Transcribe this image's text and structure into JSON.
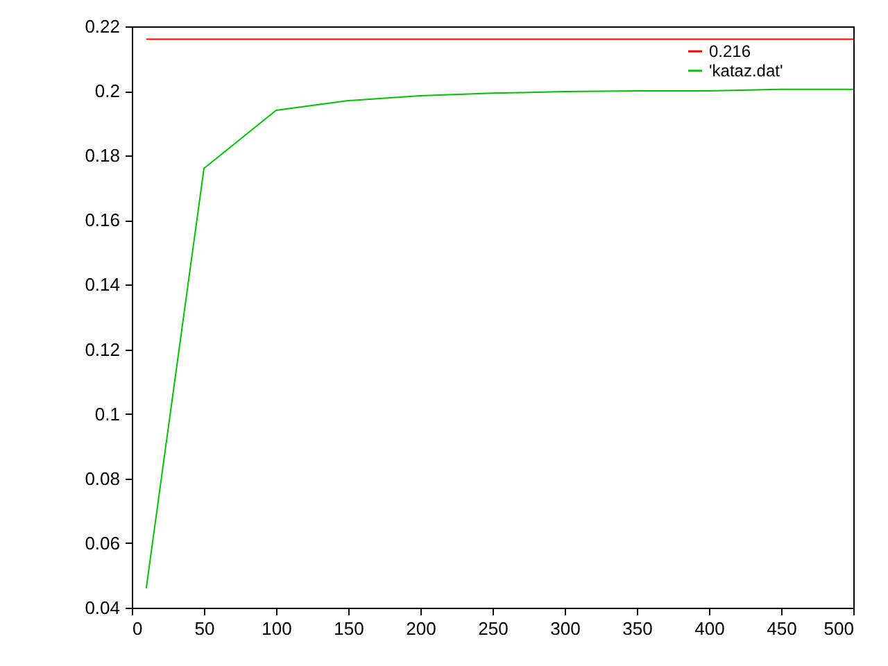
{
  "chart_data": {
    "type": "line",
    "series": [
      {
        "name": "0.216",
        "color": "#ff0000",
        "x": [
          10,
          500
        ],
        "values": [
          0.216,
          0.216
        ]
      },
      {
        "name": "'kataz.dat'",
        "color": "#00c000",
        "x": [
          10,
          50,
          100,
          150,
          200,
          250,
          300,
          350,
          400,
          450,
          500
        ],
        "values": [
          0.046,
          0.176,
          0.194,
          0.197,
          0.1985,
          0.1993,
          0.1998,
          0.2,
          0.2,
          0.2005,
          0.2005
        ]
      }
    ],
    "xlim": [
      0,
      500
    ],
    "xticks": [
      0,
      50,
      100,
      150,
      200,
      250,
      300,
      350,
      400,
      450,
      500
    ],
    "ylim": [
      0.04,
      0.22
    ],
    "yticks": [
      0.04,
      0.06,
      0.08,
      0.1,
      0.12,
      0.14,
      0.16,
      0.18,
      0.2,
      0.22
    ],
    "grid": false,
    "legend": "top right"
  }
}
